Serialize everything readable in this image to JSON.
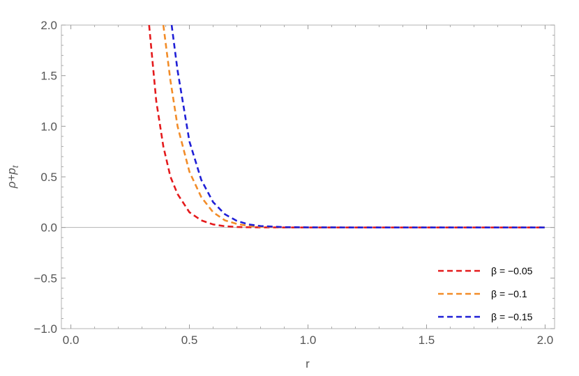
{
  "chart_data": {
    "type": "line",
    "title": "",
    "xlabel": "r",
    "ylabel": "ρ+p",
    "ylabel_subscript": "t",
    "xlim": [
      -0.04,
      2.04
    ],
    "ylim": [
      -1.0,
      2.0
    ],
    "x_ticks": [
      "0.0",
      "0.5",
      "1.0",
      "1.5",
      "2.0"
    ],
    "x_tick_values": [
      0.0,
      0.5,
      1.0,
      1.5,
      2.0
    ],
    "y_ticks": [
      "−1.0",
      "−0.5",
      "0.0",
      "0.5",
      "1.0",
      "1.5",
      "2.0"
    ],
    "y_tick_values": [
      -1.0,
      -0.5,
      0.0,
      0.5,
      1.0,
      1.5,
      2.0
    ],
    "grid": false,
    "frame": true,
    "zero_line": true,
    "legend_position": "bottom-right",
    "line_style": "dashed",
    "x": [
      0.33,
      0.36,
      0.39,
      0.42,
      0.45,
      0.5,
      0.55,
      0.6,
      0.65,
      0.7,
      0.75,
      0.8,
      0.9,
      1.0,
      1.2,
      1.5,
      2.0
    ],
    "series": [
      {
        "name": "β = −0.05",
        "color": "#e41a1c",
        "values": [
          2.0,
          1.25,
          0.8,
          0.5,
          0.33,
          0.15,
          0.07,
          0.03,
          0.012,
          0.005,
          0.002,
          0.001,
          0.0,
          0.0,
          0.0,
          0.0,
          0.0
        ]
      },
      {
        "name": "β = −0.1",
        "color": "#f28c28",
        "x": [
          0.39,
          0.42,
          0.45,
          0.5,
          0.55,
          0.6,
          0.65,
          0.7,
          0.75,
          0.8,
          0.9,
          1.0,
          1.2,
          1.5,
          2.0
        ],
        "values": [
          2.0,
          1.45,
          1.0,
          0.55,
          0.3,
          0.15,
          0.07,
          0.035,
          0.015,
          0.007,
          0.001,
          0.0,
          0.0,
          0.0,
          0.0
        ]
      },
      {
        "name": "β = −0.15",
        "color": "#1f1fd6",
        "x": [
          0.425,
          0.45,
          0.5,
          0.55,
          0.6,
          0.65,
          0.7,
          0.75,
          0.8,
          0.9,
          1.0,
          1.2,
          1.5,
          2.0
        ],
        "values": [
          2.0,
          1.55,
          0.85,
          0.47,
          0.25,
          0.13,
          0.065,
          0.03,
          0.014,
          0.003,
          0.001,
          0.0,
          0.0,
          0.0
        ]
      }
    ]
  }
}
